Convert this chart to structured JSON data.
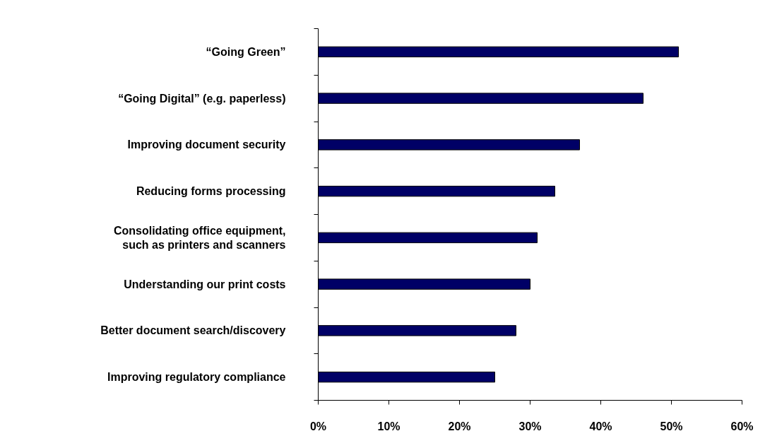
{
  "chart_data": {
    "type": "bar",
    "orientation": "horizontal",
    "categories": [
      "“Going Green”",
      "“Going Digital” (e.g. paperless)",
      "Improving document security",
      "Reducing forms processing",
      "Consolidating office equipment,\nsuch as printers and scanners",
      "Understanding our print costs",
      "Better document search/discovery",
      "Improving regulatory compliance"
    ],
    "values": [
      51,
      46,
      37,
      33.5,
      31,
      30,
      28,
      25
    ],
    "color": "#000066",
    "xlim": [
      0,
      60
    ],
    "xticks": [
      {
        "value": 0,
        "label": "0%"
      },
      {
        "value": 10,
        "label": "10%"
      },
      {
        "value": 20,
        "label": "20%"
      },
      {
        "value": 30,
        "label": "30%"
      },
      {
        "value": 40,
        "label": "40%"
      },
      {
        "value": 50,
        "label": "50%"
      },
      {
        "value": 60,
        "label": "60%"
      }
    ],
    "grid": false
  }
}
